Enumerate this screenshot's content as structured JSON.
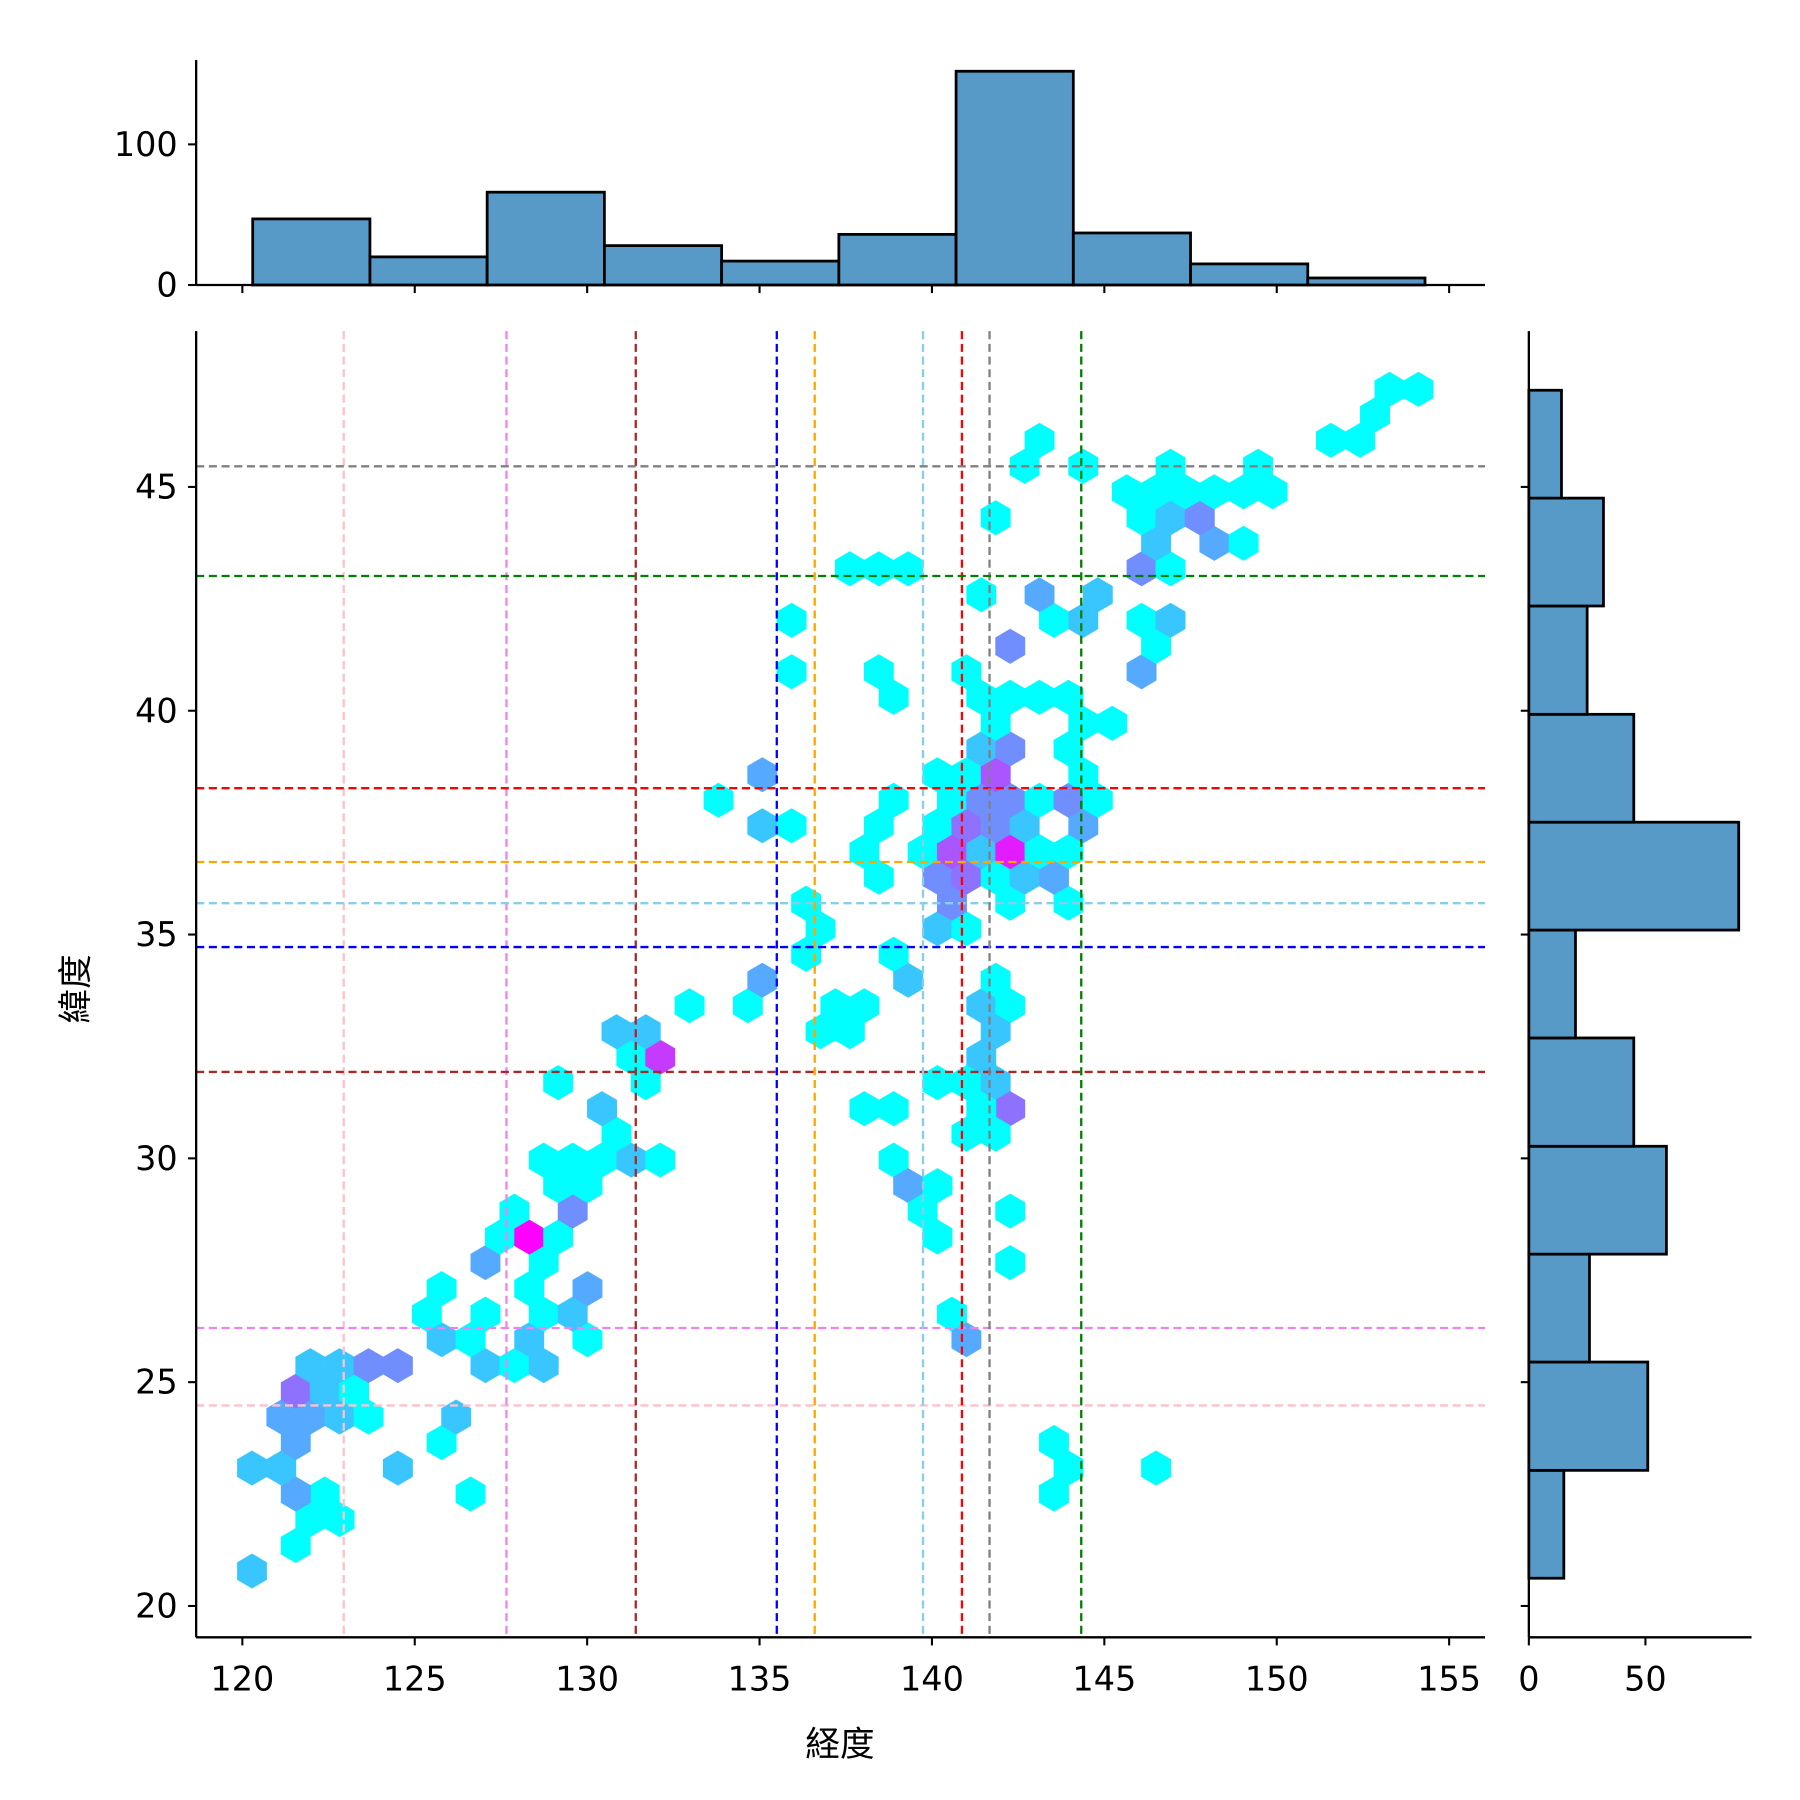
{
  "chart_data": [
    {
      "name": "joint-hexbin",
      "type": "hexbin",
      "xlabel": "経度",
      "ylabel": "緯度",
      "xlim": [
        118.66,
        156.04
      ],
      "ylim": [
        19.3,
        48.48
      ],
      "xticks": [
        120,
        125,
        130,
        135,
        140,
        145,
        150,
        155
      ],
      "xtick_labels": [
        "120",
        "125",
        "130",
        "135",
        "140",
        "145",
        "150",
        "155"
      ],
      "yticks": [
        20,
        25,
        30,
        35,
        40,
        45
      ],
      "ytick_labels": [
        "20",
        "25",
        "30",
        "35",
        "40",
        "45"
      ],
      "colormap": "cool",
      "count_range": [
        1,
        10
      ],
      "hex_spacing": {
        "lon": 0.846,
        "lat": 0.574
      },
      "hexes": [
        [
          120.28,
          20.78,
          3
        ],
        [
          121.55,
          21.35,
          1
        ],
        [
          121.97,
          21.93,
          1
        ],
        [
          122.82,
          21.93,
          1
        ],
        [
          122.39,
          22.5,
          1
        ],
        [
          121.55,
          22.5,
          4
        ],
        [
          120.28,
          23.08,
          3
        ],
        [
          121.13,
          23.08,
          3
        ],
        [
          124.51,
          23.08,
          3
        ],
        [
          121.55,
          23.65,
          4
        ],
        [
          125.78,
          23.65,
          1
        ],
        [
          121.13,
          24.22,
          4
        ],
        [
          121.97,
          24.22,
          4
        ],
        [
          122.82,
          24.22,
          3
        ],
        [
          123.66,
          24.22,
          1
        ],
        [
          126.2,
          24.22,
          3
        ],
        [
          126.62,
          22.5,
          1
        ],
        [
          121.55,
          24.8,
          6
        ],
        [
          122.39,
          24.8,
          3
        ],
        [
          123.24,
          24.8,
          1
        ],
        [
          121.97,
          25.37,
          3
        ],
        [
          122.82,
          25.37,
          3
        ],
        [
          123.66,
          25.37,
          5
        ],
        [
          124.51,
          25.37,
          5
        ],
        [
          127.05,
          25.37,
          3
        ],
        [
          127.89,
          25.37,
          1
        ],
        [
          128.74,
          25.37,
          3
        ],
        [
          125.78,
          25.95,
          3
        ],
        [
          126.62,
          25.95,
          1
        ],
        [
          128.32,
          25.95,
          3
        ],
        [
          130.01,
          25.95,
          1
        ],
        [
          125.35,
          26.52,
          1
        ],
        [
          127.05,
          26.52,
          1
        ],
        [
          128.74,
          26.52,
          1
        ],
        [
          129.58,
          26.52,
          3
        ],
        [
          125.78,
          27.09,
          1
        ],
        [
          128.32,
          27.09,
          1
        ],
        [
          130.01,
          27.09,
          4
        ],
        [
          127.05,
          27.67,
          4
        ],
        [
          128.74,
          27.67,
          1
        ],
        [
          127.47,
          28.24,
          1
        ],
        [
          128.32,
          28.24,
          10
        ],
        [
          129.16,
          28.24,
          1
        ],
        [
          127.89,
          28.82,
          1
        ],
        [
          129.58,
          28.82,
          5
        ],
        [
          129.16,
          29.39,
          1
        ],
        [
          130.01,
          29.39,
          1
        ],
        [
          128.74,
          29.96,
          1
        ],
        [
          129.58,
          29.96,
          1
        ],
        [
          130.43,
          29.96,
          1
        ],
        [
          131.28,
          29.96,
          3
        ],
        [
          132.12,
          29.96,
          1
        ],
        [
          130.85,
          30.54,
          1
        ],
        [
          130.43,
          31.11,
          3
        ],
        [
          129.16,
          31.69,
          1
        ],
        [
          131.7,
          31.69,
          1
        ],
        [
          131.28,
          32.26,
          1
        ],
        [
          132.12,
          32.26,
          8
        ],
        [
          130.85,
          32.83,
          3
        ],
        [
          131.7,
          32.83,
          3
        ],
        [
          132.97,
          33.41,
          1
        ],
        [
          134.66,
          33.41,
          1
        ],
        [
          137.2,
          33.41,
          1
        ],
        [
          138.04,
          33.41,
          1
        ],
        [
          141.43,
          33.41,
          3
        ],
        [
          142.27,
          33.41,
          1
        ],
        [
          136.77,
          32.83,
          1
        ],
        [
          137.62,
          32.83,
          1
        ],
        [
          141.85,
          32.83,
          3
        ],
        [
          135.08,
          33.98,
          4
        ],
        [
          139.31,
          33.98,
          3
        ],
        [
          141.85,
          33.98,
          1
        ],
        [
          136.35,
          34.56,
          1
        ],
        [
          138.89,
          34.56,
          1
        ],
        [
          136.77,
          35.13,
          1
        ],
        [
          140.16,
          35.13,
          3
        ],
        [
          141.0,
          35.13,
          1
        ],
        [
          136.35,
          35.7,
          1
        ],
        [
          140.58,
          35.7,
          5
        ],
        [
          142.27,
          35.7,
          1
        ],
        [
          143.96,
          35.7,
          1
        ],
        [
          138.46,
          36.28,
          1
        ],
        [
          140.16,
          36.28,
          5
        ],
        [
          141.0,
          36.28,
          6
        ],
        [
          141.85,
          36.28,
          1
        ],
        [
          142.69,
          36.28,
          3
        ],
        [
          143.54,
          36.28,
          4
        ],
        [
          138.04,
          36.85,
          1
        ],
        [
          139.73,
          36.85,
          1
        ],
        [
          140.58,
          36.85,
          7
        ],
        [
          141.43,
          36.85,
          3
        ],
        [
          142.27,
          36.85,
          9
        ],
        [
          143.12,
          36.85,
          1
        ],
        [
          143.96,
          36.85,
          1
        ],
        [
          135.08,
          37.43,
          3
        ],
        [
          135.93,
          37.43,
          1
        ],
        [
          138.46,
          37.43,
          1
        ],
        [
          140.16,
          37.43,
          1
        ],
        [
          141.0,
          37.43,
          6
        ],
        [
          141.85,
          37.43,
          5
        ],
        [
          142.69,
          37.43,
          3
        ],
        [
          144.39,
          37.43,
          4
        ],
        [
          133.81,
          38.0,
          1
        ],
        [
          138.89,
          38.0,
          1
        ],
        [
          140.58,
          38.0,
          1
        ],
        [
          141.43,
          38.0,
          5
        ],
        [
          142.27,
          38.0,
          5
        ],
        [
          143.12,
          38.0,
          1
        ],
        [
          143.96,
          38.0,
          5
        ],
        [
          144.81,
          38.0,
          1
        ],
        [
          135.08,
          38.57,
          4
        ],
        [
          140.16,
          38.57,
          1
        ],
        [
          141.0,
          38.57,
          1
        ],
        [
          141.85,
          38.57,
          7
        ],
        [
          144.39,
          38.57,
          1
        ],
        [
          141.43,
          39.15,
          3
        ],
        [
          142.27,
          39.15,
          5
        ],
        [
          143.96,
          39.15,
          1
        ],
        [
          141.85,
          39.72,
          1
        ],
        [
          144.39,
          39.72,
          1
        ],
        [
          145.23,
          39.72,
          1
        ],
        [
          138.89,
          40.3,
          1
        ],
        [
          141.43,
          40.3,
          1
        ],
        [
          142.27,
          40.3,
          1
        ],
        [
          143.12,
          40.3,
          1
        ],
        [
          143.96,
          40.3,
          1
        ],
        [
          135.93,
          40.87,
          1
        ],
        [
          138.46,
          40.87,
          1
        ],
        [
          141.0,
          40.87,
          1
        ],
        [
          146.08,
          40.87,
          4
        ],
        [
          142.27,
          41.44,
          5
        ],
        [
          146.5,
          41.44,
          1
        ],
        [
          135.93,
          42.02,
          1
        ],
        [
          143.54,
          42.02,
          1
        ],
        [
          144.39,
          42.02,
          3
        ],
        [
          146.08,
          42.02,
          1
        ],
        [
          146.92,
          42.02,
          3
        ],
        [
          141.43,
          42.59,
          1
        ],
        [
          143.12,
          42.59,
          4
        ],
        [
          144.81,
          42.59,
          3
        ],
        [
          137.62,
          43.17,
          1
        ],
        [
          138.46,
          43.17,
          1
        ],
        [
          139.31,
          43.17,
          1
        ],
        [
          146.08,
          43.17,
          5
        ],
        [
          146.92,
          43.17,
          1
        ],
        [
          146.5,
          43.74,
          3
        ],
        [
          148.19,
          43.74,
          4
        ],
        [
          149.04,
          43.74,
          1
        ],
        [
          141.85,
          44.31,
          1
        ],
        [
          146.08,
          44.31,
          1
        ],
        [
          146.92,
          44.31,
          3
        ],
        [
          147.77,
          44.31,
          5
        ],
        [
          145.65,
          44.89,
          1
        ],
        [
          146.5,
          44.89,
          1
        ],
        [
          147.35,
          44.89,
          1
        ],
        [
          148.19,
          44.89,
          1
        ],
        [
          149.04,
          44.89,
          1
        ],
        [
          149.88,
          44.89,
          1
        ],
        [
          142.69,
          45.46,
          1
        ],
        [
          144.39,
          45.46,
          1
        ],
        [
          146.92,
          45.46,
          1
        ],
        [
          149.46,
          45.46,
          1
        ],
        [
          143.12,
          46.04,
          1
        ],
        [
          151.57,
          46.04,
          1
        ],
        [
          152.42,
          46.04,
          1
        ],
        [
          152.85,
          46.61,
          1
        ],
        [
          153.27,
          47.18,
          1
        ],
        [
          154.11,
          47.18,
          1
        ],
        [
          141.43,
          32.26,
          3
        ],
        [
          140.16,
          31.69,
          1
        ],
        [
          141.0,
          31.69,
          1
        ],
        [
          141.85,
          31.69,
          3
        ],
        [
          142.27,
          31.11,
          6
        ],
        [
          141.43,
          31.11,
          1
        ],
        [
          138.04,
          31.11,
          1
        ],
        [
          138.89,
          31.11,
          1
        ],
        [
          141.0,
          30.54,
          1
        ],
        [
          141.85,
          30.54,
          1
        ],
        [
          138.89,
          29.96,
          1
        ],
        [
          139.31,
          29.39,
          4
        ],
        [
          140.16,
          29.39,
          1
        ],
        [
          139.73,
          28.82,
          1
        ],
        [
          140.16,
          28.24,
          1
        ],
        [
          142.27,
          28.82,
          1
        ],
        [
          142.27,
          27.67,
          1
        ],
        [
          140.58,
          26.52,
          1
        ],
        [
          141.0,
          25.95,
          4
        ],
        [
          143.54,
          23.65,
          1
        ],
        [
          143.96,
          23.08,
          1
        ],
        [
          143.54,
          22.5,
          1
        ],
        [
          146.5,
          23.08,
          1
        ]
      ],
      "reference_lines": [
        {
          "color": "#ffc0cb",
          "lon": 122.94,
          "lat": 24.48
        },
        {
          "color": "#ee82ee",
          "lon": 127.66,
          "lat": 26.21
        },
        {
          "color": "#a52a2a",
          "lon": 131.41,
          "lat": 31.93
        },
        {
          "color": "#0000ff",
          "lon": 135.5,
          "lat": 34.72
        },
        {
          "color": "#ffa500",
          "lon": 136.6,
          "lat": 36.62
        },
        {
          "color": "#87ceeb",
          "lon": 139.74,
          "lat": 35.7
        },
        {
          "color": "#ff0000",
          "lon": 140.87,
          "lat": 38.27
        },
        {
          "color": "#808080",
          "lon": 141.67,
          "lat": 45.46
        },
        {
          "color": "#008000",
          "lon": 144.33,
          "lat": 43.01
        }
      ]
    },
    {
      "name": "top-marginal-histogram",
      "type": "bar",
      "orientation": "vertical",
      "bin_edges": [
        120.3,
        123.7,
        127.1,
        130.5,
        133.9,
        137.3,
        140.7,
        144.1,
        147.5,
        150.9,
        154.3
      ],
      "counts": [
        47,
        20,
        66,
        28,
        17,
        36,
        152,
        37,
        15,
        5
      ],
      "ylim": [
        0,
        160
      ],
      "yticks": [
        0,
        100
      ],
      "ytick_labels": [
        "0",
        "100"
      ],
      "color": "#5799c7"
    },
    {
      "name": "right-marginal-histogram",
      "type": "bar",
      "orientation": "horizontal",
      "bin_edges": [
        20.62,
        23.03,
        25.45,
        27.86,
        30.27,
        32.69,
        35.1,
        37.51,
        39.92,
        42.34,
        44.75,
        47.16
      ],
      "counts": [
        15,
        51,
        26,
        59,
        45,
        20,
        90,
        45,
        25,
        32,
        14
      ],
      "xlim": [
        0,
        95.5
      ],
      "xticks": [
        0,
        50
      ],
      "xtick_labels": [
        "0",
        "50"
      ],
      "color": "#5799c7"
    }
  ]
}
